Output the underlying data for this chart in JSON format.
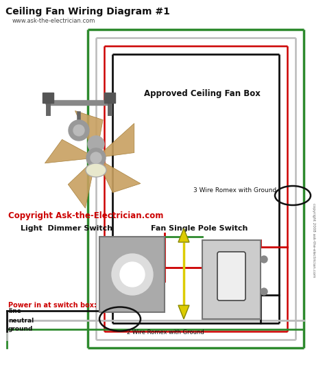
{
  "title": "Ceiling Fan Wiring Diagram #1",
  "subtitle": "www.ask-the-electrician.com",
  "bg_color": "#ffffff",
  "wire_black": "#111111",
  "wire_red": "#cc0000",
  "wire_green": "#2d8a2d",
  "wire_white": "#bbbbbb",
  "wire_yellow": "#ddcc00",
  "copyright_text": "Copyright Ask-the-Electrician.com",
  "copyright_color": "#cc0000",
  "label_fan_box": "Approved Ceiling Fan Box",
  "label_3wire": "3 Wire Romex with Ground",
  "label_2wire": "2 Wire Romex with Ground",
  "label_light_switch": "Light  Dimmer Switch",
  "label_fan_switch": "Fan Single Pole Switch",
  "label_power": "Power in at switch box:",
  "label_line": "line",
  "label_neutral": "neutral",
  "label_ground": "ground",
  "side_text": "copyright 2008 ask-the-electrician.com"
}
